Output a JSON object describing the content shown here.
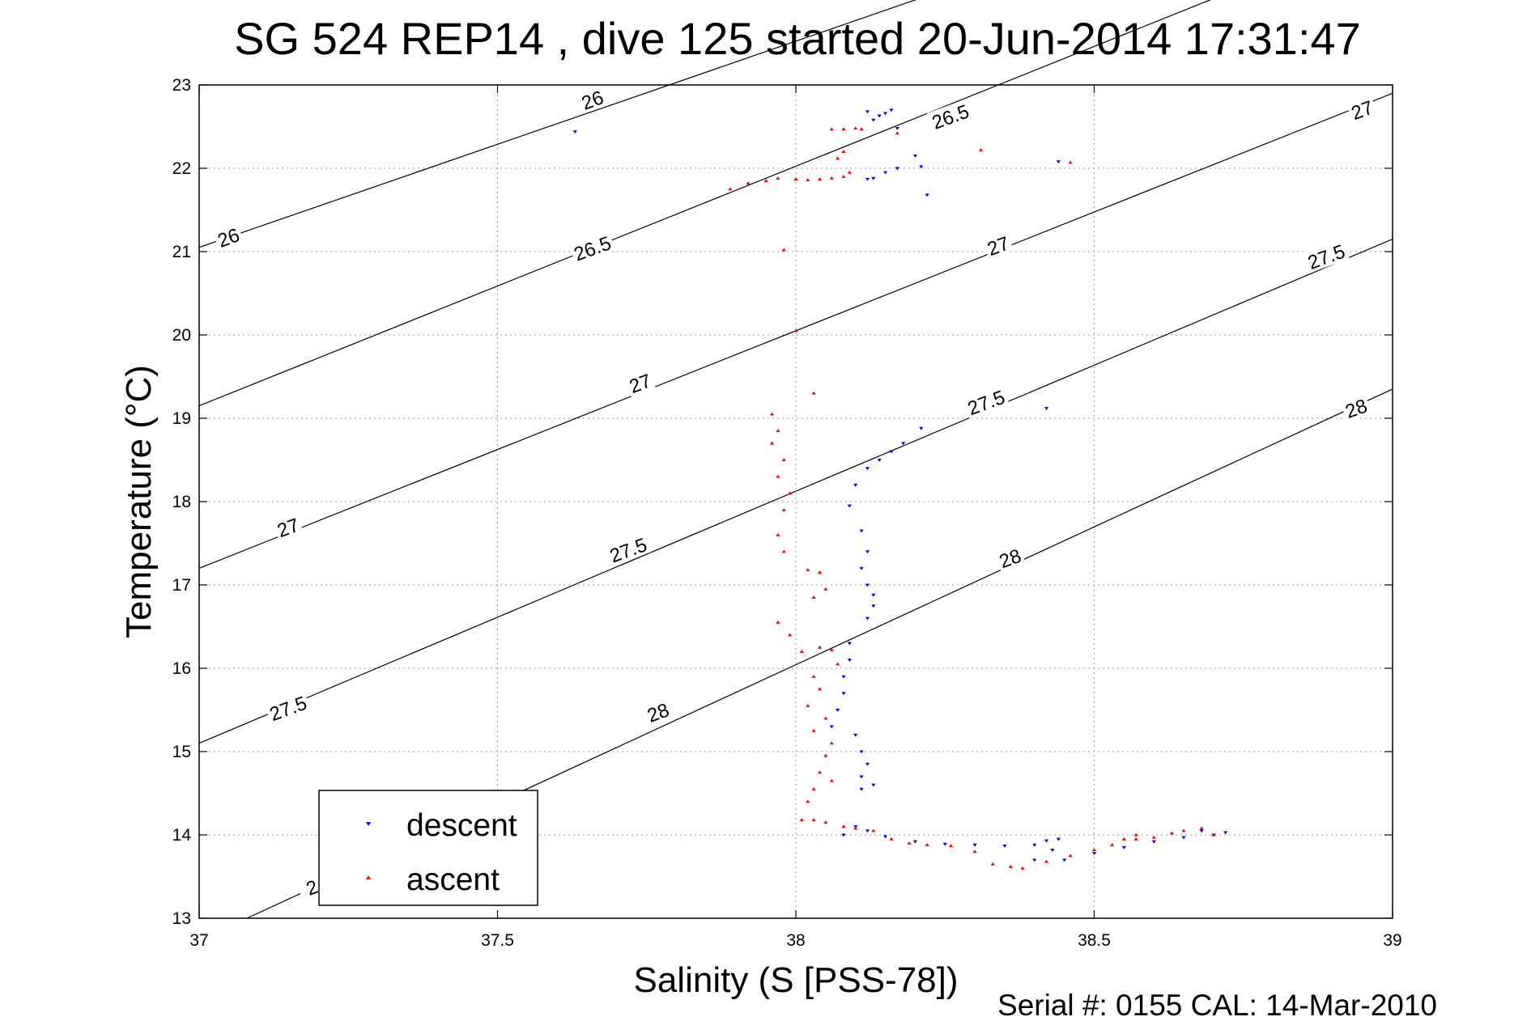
{
  "chart_data": {
    "type": "scatter",
    "title": "SG 524   REP14  , dive 125 started 20-Jun-2014 17:31:47",
    "xlabel": "Salinity (S [PSS-78])",
    "ylabel": "Temperature (°C)",
    "footer": "Serial #: 0155  CAL: 14-Mar-2010",
    "xlim": [
      37,
      39
    ],
    "ylim": [
      13,
      23
    ],
    "xticks": [
      37,
      37.5,
      38,
      38.5,
      39
    ],
    "xtick_labels": [
      "37",
      "37.5",
      "38",
      "38.5",
      "39"
    ],
    "yticks": [
      13,
      14,
      15,
      16,
      17,
      18,
      19,
      20,
      21,
      22,
      23
    ],
    "ytick_labels": [
      "13",
      "14",
      "15",
      "16",
      "17",
      "18",
      "19",
      "20",
      "21",
      "22",
      "23"
    ],
    "grid": true,
    "legend_position": "bottom-left",
    "density_contours": [
      {
        "level": "26",
        "points": [
          [
            37,
            21.05
          ],
          [
            39,
            26.0
          ]
        ]
      },
      {
        "level": "26.5",
        "points": [
          [
            37,
            19.15
          ],
          [
            39,
            24.9
          ]
        ]
      },
      {
        "level": "27",
        "points": [
          [
            37,
            17.2
          ],
          [
            39,
            22.9
          ]
        ]
      },
      {
        "level": "27.5",
        "points": [
          [
            37,
            15.1
          ],
          [
            39,
            21.15
          ]
        ]
      },
      {
        "level": "28",
        "points": [
          [
            37.08,
            13.0
          ],
          [
            39,
            19.35
          ]
        ]
      }
    ],
    "contour_labels": [
      {
        "text": "26",
        "x": 37.66,
        "y": 22.8
      },
      {
        "text": "26",
        "x": 37.05,
        "y": 21.15
      },
      {
        "text": "26.5",
        "x": 38.26,
        "y": 22.6
      },
      {
        "text": "26.5",
        "x": 37.66,
        "y": 21.02
      },
      {
        "text": "27",
        "x": 38.95,
        "y": 22.68
      },
      {
        "text": "27",
        "x": 38.34,
        "y": 21.05
      },
      {
        "text": "27",
        "x": 37.74,
        "y": 19.4
      },
      {
        "text": "27",
        "x": 37.15,
        "y": 17.67
      },
      {
        "text": "27.5",
        "x": 38.89,
        "y": 20.92
      },
      {
        "text": "27.5",
        "x": 38.32,
        "y": 19.17
      },
      {
        "text": "27.5",
        "x": 37.72,
        "y": 17.4
      },
      {
        "text": "27.5",
        "x": 37.15,
        "y": 15.5
      },
      {
        "text": "28",
        "x": 38.94,
        "y": 19.1
      },
      {
        "text": "28",
        "x": 38.36,
        "y": 17.3
      },
      {
        "text": "28",
        "x": 37.77,
        "y": 15.45
      },
      {
        "text": "2",
        "x": 37.19,
        "y": 13.35
      }
    ],
    "series": [
      {
        "name": "descent",
        "color": "#0000ff",
        "marker": "triangle-down",
        "points": [
          [
            37.63,
            22.44
          ],
          [
            38.12,
            22.68
          ],
          [
            38.14,
            22.63
          ],
          [
            38.15,
            22.66
          ],
          [
            38.16,
            22.7
          ],
          [
            38.13,
            22.58
          ],
          [
            38.17,
            22.48
          ],
          [
            38.2,
            22.15
          ],
          [
            38.22,
            21.68
          ],
          [
            38.21,
            22.02
          ],
          [
            38.17,
            22.0
          ],
          [
            38.15,
            21.95
          ],
          [
            38.13,
            21.88
          ],
          [
            38.12,
            21.87
          ],
          [
            38.44,
            22.08
          ],
          [
            38.21,
            18.88
          ],
          [
            38.18,
            18.7
          ],
          [
            38.16,
            18.6
          ],
          [
            38.14,
            18.5
          ],
          [
            38.12,
            18.4
          ],
          [
            38.1,
            18.2
          ],
          [
            38.09,
            17.95
          ],
          [
            38.11,
            17.65
          ],
          [
            38.12,
            17.4
          ],
          [
            38.11,
            17.2
          ],
          [
            38.12,
            17.0
          ],
          [
            38.13,
            16.88
          ],
          [
            38.13,
            16.75
          ],
          [
            38.12,
            16.6
          ],
          [
            38.42,
            19.12
          ],
          [
            38.09,
            16.3
          ],
          [
            38.09,
            16.1
          ],
          [
            38.08,
            15.9
          ],
          [
            38.08,
            15.7
          ],
          [
            38.07,
            15.5
          ],
          [
            38.06,
            15.3
          ],
          [
            38.1,
            15.2
          ],
          [
            38.11,
            15.0
          ],
          [
            38.12,
            14.85
          ],
          [
            38.11,
            14.7
          ],
          [
            38.13,
            14.6
          ],
          [
            38.11,
            14.55
          ],
          [
            38.1,
            14.1
          ],
          [
            38.08,
            14.0
          ],
          [
            38.12,
            14.05
          ],
          [
            38.15,
            13.98
          ],
          [
            38.2,
            13.92
          ],
          [
            38.25,
            13.89
          ],
          [
            38.3,
            13.88
          ],
          [
            38.35,
            13.87
          ],
          [
            38.4,
            13.88
          ],
          [
            38.42,
            13.93
          ],
          [
            38.44,
            13.95
          ],
          [
            38.43,
            13.82
          ],
          [
            38.4,
            13.7
          ],
          [
            38.45,
            13.7
          ],
          [
            38.5,
            13.78
          ],
          [
            38.55,
            13.85
          ],
          [
            38.6,
            13.92
          ],
          [
            38.65,
            13.97
          ],
          [
            38.7,
            14.0
          ],
          [
            38.72,
            14.03
          ],
          [
            38.68,
            14.05
          ]
        ]
      },
      {
        "name": "ascent",
        "color": "#ff0000",
        "marker": "triangle-up",
        "points": [
          [
            38.06,
            22.47
          ],
          [
            38.08,
            22.47
          ],
          [
            38.1,
            22.48
          ],
          [
            38.11,
            22.47
          ],
          [
            38.08,
            22.2
          ],
          [
            38.07,
            22.12
          ],
          [
            37.89,
            21.75
          ],
          [
            37.92,
            21.82
          ],
          [
            37.95,
            21.85
          ],
          [
            37.97,
            21.88
          ],
          [
            38.0,
            21.87
          ],
          [
            38.02,
            21.86
          ],
          [
            38.04,
            21.87
          ],
          [
            38.06,
            21.88
          ],
          [
            38.08,
            21.9
          ],
          [
            38.09,
            21.95
          ],
          [
            38.31,
            22.22
          ],
          [
            38.46,
            22.07
          ],
          [
            38.17,
            22.42
          ],
          [
            37.98,
            21.02
          ],
          [
            38.0,
            20.05
          ],
          [
            38.03,
            19.3
          ],
          [
            37.96,
            19.05
          ],
          [
            37.97,
            18.85
          ],
          [
            37.96,
            18.7
          ],
          [
            37.98,
            18.5
          ],
          [
            37.97,
            18.3
          ],
          [
            37.99,
            18.1
          ],
          [
            37.98,
            17.9
          ],
          [
            37.97,
            17.6
          ],
          [
            37.98,
            17.4
          ],
          [
            38.02,
            17.18
          ],
          [
            38.04,
            17.15
          ],
          [
            38.05,
            16.95
          ],
          [
            38.03,
            16.85
          ],
          [
            37.97,
            16.55
          ],
          [
            37.99,
            16.4
          ],
          [
            38.01,
            16.2
          ],
          [
            38.04,
            16.25
          ],
          [
            38.06,
            16.22
          ],
          [
            38.07,
            16.05
          ],
          [
            38.03,
            15.9
          ],
          [
            38.04,
            15.75
          ],
          [
            38.02,
            15.55
          ],
          [
            38.05,
            15.4
          ],
          [
            38.03,
            15.25
          ],
          [
            38.06,
            15.1
          ],
          [
            38.05,
            14.95
          ],
          [
            38.04,
            14.75
          ],
          [
            38.06,
            14.65
          ],
          [
            38.03,
            14.55
          ],
          [
            38.02,
            14.4
          ],
          [
            38.01,
            14.18
          ],
          [
            38.03,
            14.18
          ],
          [
            38.05,
            14.15
          ],
          [
            38.08,
            14.1
          ],
          [
            38.1,
            14.08
          ],
          [
            38.13,
            14.05
          ],
          [
            38.16,
            13.95
          ],
          [
            38.19,
            13.9
          ],
          [
            38.22,
            13.88
          ],
          [
            38.26,
            13.87
          ],
          [
            38.3,
            13.8
          ],
          [
            38.33,
            13.65
          ],
          [
            38.36,
            13.62
          ],
          [
            38.38,
            13.6
          ],
          [
            38.42,
            13.68
          ],
          [
            38.46,
            13.75
          ],
          [
            38.5,
            13.82
          ],
          [
            38.53,
            13.88
          ],
          [
            38.57,
            13.95
          ],
          [
            38.6,
            13.97
          ],
          [
            38.63,
            14.02
          ],
          [
            38.65,
            14.05
          ],
          [
            38.68,
            14.08
          ],
          [
            38.7,
            14.0
          ],
          [
            38.57,
            14.0
          ],
          [
            38.55,
            13.95
          ]
        ]
      }
    ]
  }
}
